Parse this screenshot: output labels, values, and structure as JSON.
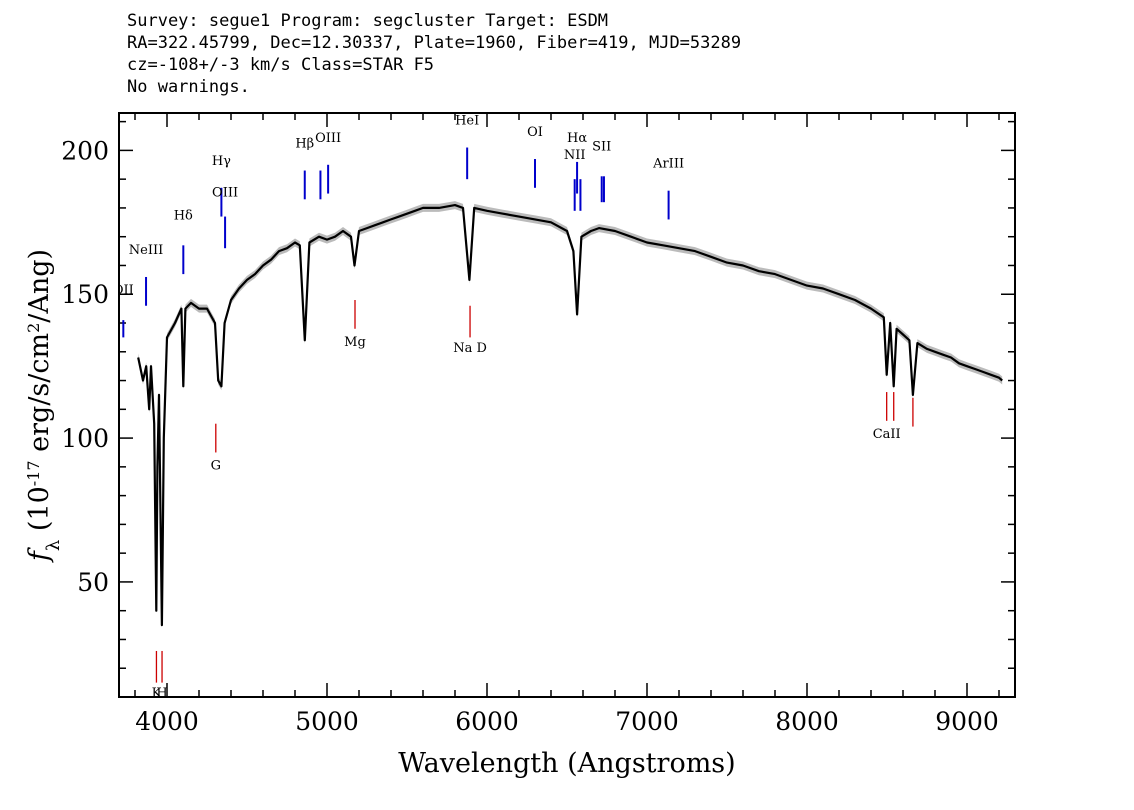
{
  "header": {
    "line1": "Survey: segue1 Program: segcluster Target: ESDM",
    "line2": "RA=322.45799, Dec=12.30337, Plate=1960, Fiber=419, MJD=53289",
    "line3": "cz=-108+/-3 km/s Class=STAR F5",
    "line4": "No warnings."
  },
  "chart_data": {
    "type": "line",
    "title": "",
    "xlabel": "Wavelength (Angstroms)",
    "ylabel": "f_λ (10^-17 erg/s/cm^2/Ang)",
    "xlim": [
      3700,
      9300
    ],
    "ylim": [
      10,
      213
    ],
    "x_ticks": [
      4000,
      5000,
      6000,
      7000,
      8000,
      9000
    ],
    "x_tick_labels": [
      "4000",
      "5000",
      "6000",
      "7000",
      "8000",
      "9000"
    ],
    "y_ticks": [
      50,
      100,
      150,
      200
    ],
    "y_tick_labels": [
      "50",
      "100",
      "150",
      "200"
    ],
    "grid": false,
    "series": [
      {
        "color": "#000000",
        "error_band_color": "#bbbbbb",
        "x": [
          3820,
          3850,
          3870,
          3889,
          3900,
          3920,
          3933,
          3940,
          3950,
          3968,
          3980,
          4000,
          4050,
          4090,
          4102,
          4115,
          4150,
          4200,
          4250,
          4300,
          4320,
          4340,
          4360,
          4400,
          4450,
          4500,
          4550,
          4600,
          4650,
          4700,
          4750,
          4800,
          4830,
          4861,
          4890,
          4950,
          5000,
          5050,
          5100,
          5150,
          5172,
          5200,
          5250,
          5300,
          5350,
          5400,
          5450,
          5500,
          5550,
          5600,
          5650,
          5700,
          5800,
          5850,
          5890,
          5920,
          6000,
          6100,
          6200,
          6300,
          6400,
          6500,
          6540,
          6563,
          6590,
          6650,
          6700,
          6800,
          6900,
          7000,
          7100,
          7200,
          7300,
          7400,
          7500,
          7600,
          7700,
          7800,
          7900,
          8000,
          8100,
          8200,
          8300,
          8400,
          8480,
          8498,
          8520,
          8542,
          8560,
          8600,
          8640,
          8662,
          8690,
          8750,
          8800,
          8850,
          8900,
          8950,
          9000,
          9050,
          9100,
          9150,
          9200,
          9220
        ],
        "y": [
          128,
          120,
          125,
          110,
          125,
          105,
          40,
          90,
          115,
          35,
          100,
          135,
          140,
          145,
          118,
          145,
          147,
          145,
          145,
          140,
          120,
          118,
          140,
          148,
          152,
          155,
          157,
          160,
          162,
          165,
          166,
          168,
          167,
          134,
          168,
          170,
          169,
          170,
          172,
          170,
          160,
          172,
          173,
          174,
          175,
          176,
          177,
          178,
          179,
          180,
          180,
          180,
          181,
          180,
          155,
          180,
          179,
          178,
          177,
          176,
          175,
          172,
          165,
          143,
          170,
          172,
          173,
          172,
          170,
          168,
          167,
          166,
          165,
          163,
          161,
          160,
          158,
          157,
          155,
          153,
          152,
          150,
          148,
          145,
          142,
          122,
          140,
          118,
          138,
          136,
          134,
          115,
          133,
          131,
          130,
          129,
          128,
          126,
          125,
          124,
          123,
          122,
          121,
          120
        ]
      }
    ],
    "emission_lines": [
      {
        "label": "OII",
        "x": 3727,
        "y_top": 141,
        "y_bottom": 135,
        "color": "#0000cc",
        "label_y": 150
      },
      {
        "label": "NeIII",
        "x": 3869,
        "y_top": 156,
        "y_bottom": 146,
        "color": "#0000cc",
        "label_y": 164
      },
      {
        "label": "Hδ",
        "x": 4102,
        "y_top": 167,
        "y_bottom": 157,
        "color": "#0000cc",
        "label_y": 176
      },
      {
        "label": "Hγ",
        "x": 4340,
        "y_top": 187,
        "y_bottom": 177,
        "color": "#0000cc",
        "label_y": 195
      },
      {
        "label": "OIII",
        "x": 4363,
        "y_top": 177,
        "y_bottom": 166,
        "color": "#0000cc",
        "label_y": 184
      },
      {
        "label": "Hβ",
        "x": 4861,
        "y_top": 193,
        "y_bottom": 183,
        "color": "#0000cc",
        "label_y": 201
      },
      {
        "label": "OIII",
        "x": 4959,
        "y_top": 193,
        "y_bottom": 183,
        "color": "#0000cc",
        "label_y": 0
      },
      {
        "label": "OIII",
        "x": 5007,
        "y_top": 195,
        "y_bottom": 185,
        "color": "#0000cc",
        "label_y": 203
      },
      {
        "label": "HeI",
        "x": 5876,
        "y_top": 201,
        "y_bottom": 190,
        "color": "#0000cc",
        "label_y": 209
      },
      {
        "label": "OI",
        "x": 6300,
        "y_top": 197,
        "y_bottom": 187,
        "color": "#0000cc",
        "label_y": 205
      },
      {
        "label": "NII",
        "x": 6548,
        "y_top": 190,
        "y_bottom": 179,
        "color": "#0000cc",
        "label_y": 197
      },
      {
        "label": "Hα",
        "x": 6563,
        "y_top": 196,
        "y_bottom": 185,
        "color": "#0000cc",
        "label_y": 203
      },
      {
        "label": "NII",
        "x": 6584,
        "y_top": 190,
        "y_bottom": 179,
        "color": "#0000cc",
        "label_y": 0
      },
      {
        "label": "SII",
        "x": 6717,
        "y_top": 191,
        "y_bottom": 182,
        "color": "#0000cc",
        "label_y": 200
      },
      {
        "label": "SII",
        "x": 6731,
        "y_top": 191,
        "y_bottom": 182,
        "color": "#0000cc",
        "label_y": 0
      },
      {
        "label": "ArIII",
        "x": 7135,
        "y_top": 186,
        "y_bottom": 176,
        "color": "#0000cc",
        "label_y": 194
      }
    ],
    "absorption_lines": [
      {
        "label": "K",
        "x": 3934,
        "y_top": 26,
        "y_bottom": 15,
        "color": "#cc0000",
        "label_y": 10
      },
      {
        "label": "H",
        "x": 3969,
        "y_top": 26,
        "y_bottom": 15,
        "color": "#cc0000",
        "label_y": 10
      },
      {
        "label": "G",
        "x": 4305,
        "y_top": 105,
        "y_bottom": 95,
        "color": "#cc0000",
        "label_y": 89
      },
      {
        "label": "Mg",
        "x": 5175,
        "y_top": 148,
        "y_bottom": 138,
        "color": "#cc0000",
        "label_y": 132
      },
      {
        "label": "Na D",
        "x": 5894,
        "y_top": 146,
        "y_bottom": 135,
        "color": "#cc0000",
        "label_y": 130
      },
      {
        "label": "CaII",
        "x": 8498,
        "y_top": 116,
        "y_bottom": 106,
        "color": "#cc0000",
        "label_y": 100
      },
      {
        "label": "CaII",
        "x": 8542,
        "y_top": 116,
        "y_bottom": 106,
        "color": "#cc0000",
        "label_y": 0
      },
      {
        "label": "CaII",
        "x": 8662,
        "y_top": 114,
        "y_bottom": 104,
        "color": "#cc0000",
        "label_y": 0
      }
    ]
  }
}
